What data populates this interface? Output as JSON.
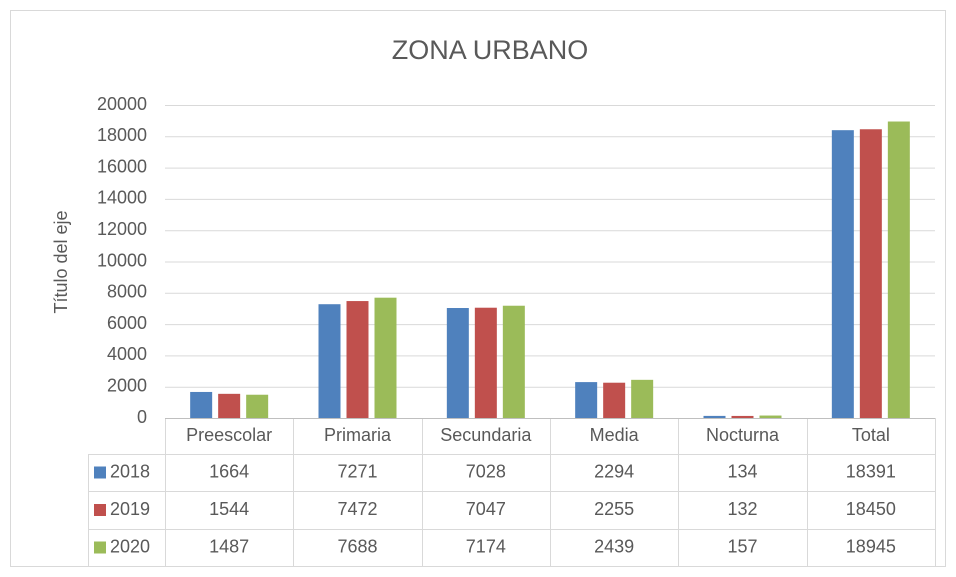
{
  "chart_data": {
    "type": "bar",
    "title": "ZONA URBANO",
    "y_axis_label": "Título del eje",
    "categories": [
      "Preescolar",
      "Primaria",
      "Secundaria",
      "Media",
      "Nocturna",
      "Total"
    ],
    "series": [
      {
        "name": "2018",
        "color": "#4f81bd",
        "values": [
          1664,
          7271,
          7028,
          2294,
          134,
          18391
        ]
      },
      {
        "name": "2019",
        "color": "#c0504d",
        "values": [
          1544,
          7472,
          7047,
          2255,
          132,
          18450
        ]
      },
      {
        "name": "2020",
        "color": "#9bbb59",
        "values": [
          1487,
          7688,
          7174,
          2439,
          157,
          18945
        ]
      }
    ],
    "ylim": [
      0,
      20000
    ],
    "yticks": [
      0,
      2000,
      4000,
      6000,
      8000,
      10000,
      12000,
      14000,
      16000,
      18000,
      20000
    ],
    "grid": true,
    "data_table": true
  }
}
